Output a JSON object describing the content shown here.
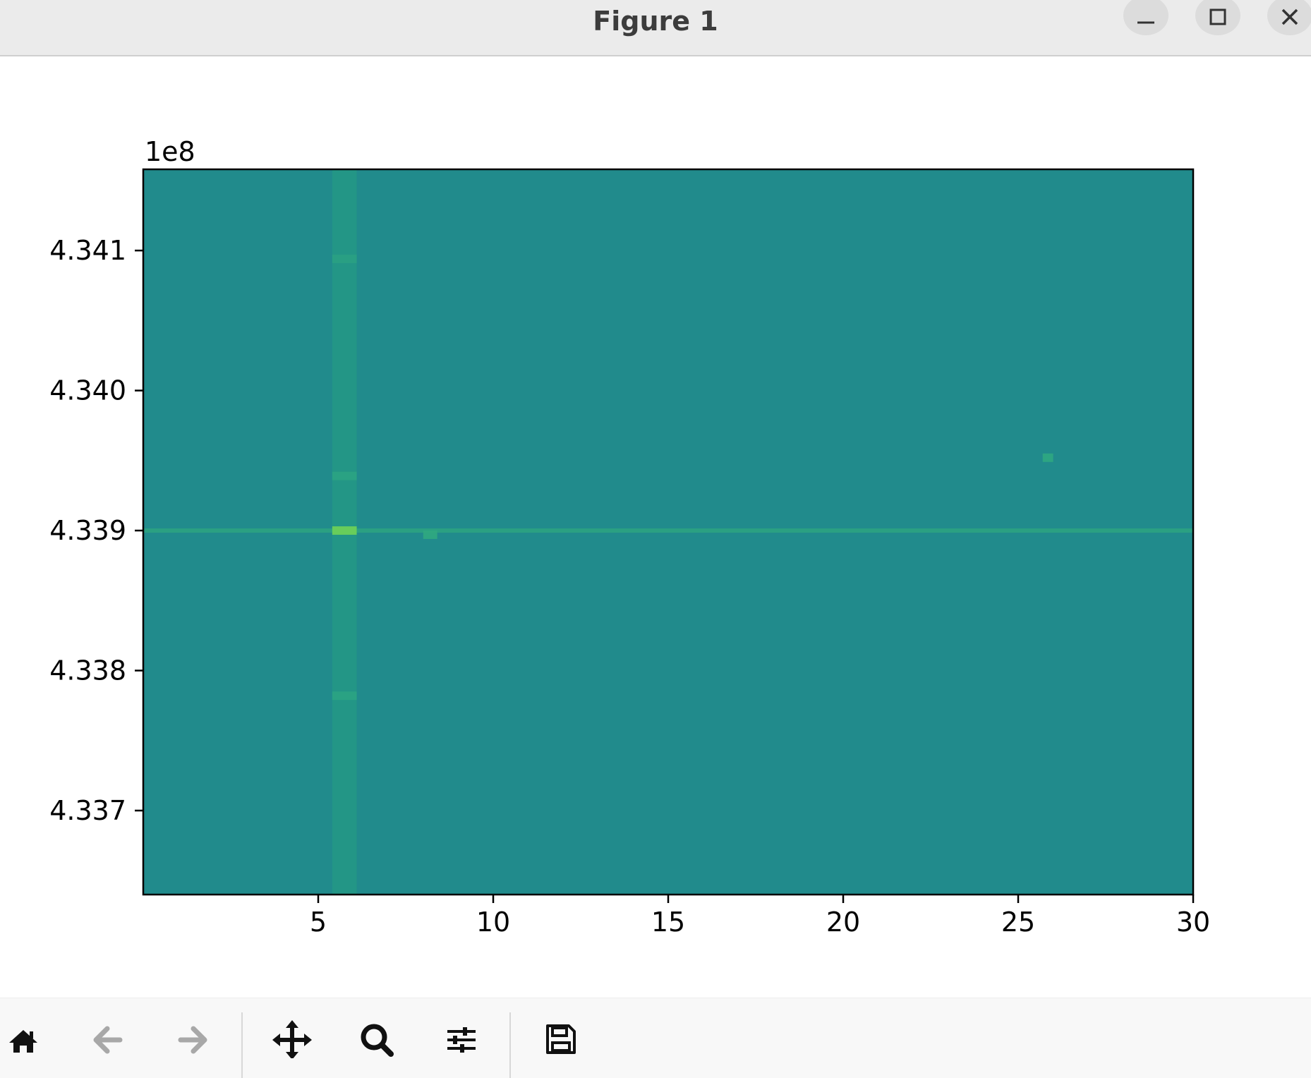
{
  "window": {
    "title": "Figure 1",
    "buttons": [
      {
        "name": "minimize-button",
        "icon": "minimize-icon"
      },
      {
        "name": "maximize-button",
        "icon": "maximize-icon"
      },
      {
        "name": "close-button",
        "icon": "close-icon"
      }
    ]
  },
  "toolbar": {
    "items": [
      {
        "name": "home-button",
        "icon": "home-icon",
        "enabled": true
      },
      {
        "name": "back-button",
        "icon": "arrow-left-icon",
        "enabled": false
      },
      {
        "name": "forward-button",
        "icon": "arrow-right-icon",
        "enabled": false
      },
      {
        "name": "pan-button",
        "icon": "move-icon",
        "enabled": true
      },
      {
        "name": "zoom-button",
        "icon": "magnifier-icon",
        "enabled": true
      },
      {
        "name": "configure-subplots-button",
        "icon": "sliders-icon",
        "enabled": true
      },
      {
        "name": "save-button",
        "icon": "floppy-disk-icon",
        "enabled": true
      }
    ]
  },
  "chart_data": {
    "type": "heatmap",
    "title": "",
    "xlabel": "",
    "ylabel": "",
    "offset_text": "1e8",
    "xlim": [
      0,
      30
    ],
    "ylim": [
      433.64,
      434.158
    ],
    "x_ticks": [
      5,
      10,
      15,
      20,
      25,
      30
    ],
    "x_tick_labels": [
      "5",
      "10",
      "15",
      "20",
      "25",
      "30"
    ],
    "y_ticks": [
      433.7,
      433.8,
      433.9,
      434.0,
      434.1
    ],
    "y_tick_labels": [
      "4.337",
      "4.338",
      "4.339",
      "4.340",
      "4.341"
    ],
    "colormap": "viridis",
    "background_color": "#218b8c",
    "features": [
      {
        "kind": "vertical-band",
        "x_range": [
          5.4,
          6.1
        ],
        "color": "#27a082"
      },
      {
        "kind": "horizontal-line",
        "y": 433.9,
        "color": "#2ea57f"
      },
      {
        "kind": "hot-spot",
        "x_range": [
          5.4,
          6.1
        ],
        "y": 433.9,
        "color": "#6fd256"
      },
      {
        "kind": "hot-spot",
        "x_range": [
          5.4,
          6.1
        ],
        "y": 434.094,
        "color": "#2aa083"
      },
      {
        "kind": "hot-spot",
        "x_range": [
          5.4,
          6.1
        ],
        "y": 433.939,
        "color": "#2ba383"
      },
      {
        "kind": "hot-spot",
        "x_range": [
          5.4,
          6.1
        ],
        "y": 433.782,
        "color": "#2ba383"
      },
      {
        "kind": "hot-spot",
        "x_range": [
          8.0,
          8.4
        ],
        "y": 433.897,
        "color": "#30a880"
      },
      {
        "kind": "hot-spot",
        "x_range": [
          25.7,
          26.0
        ],
        "y": 433.952,
        "color": "#2fa781"
      }
    ],
    "grid": false
  }
}
